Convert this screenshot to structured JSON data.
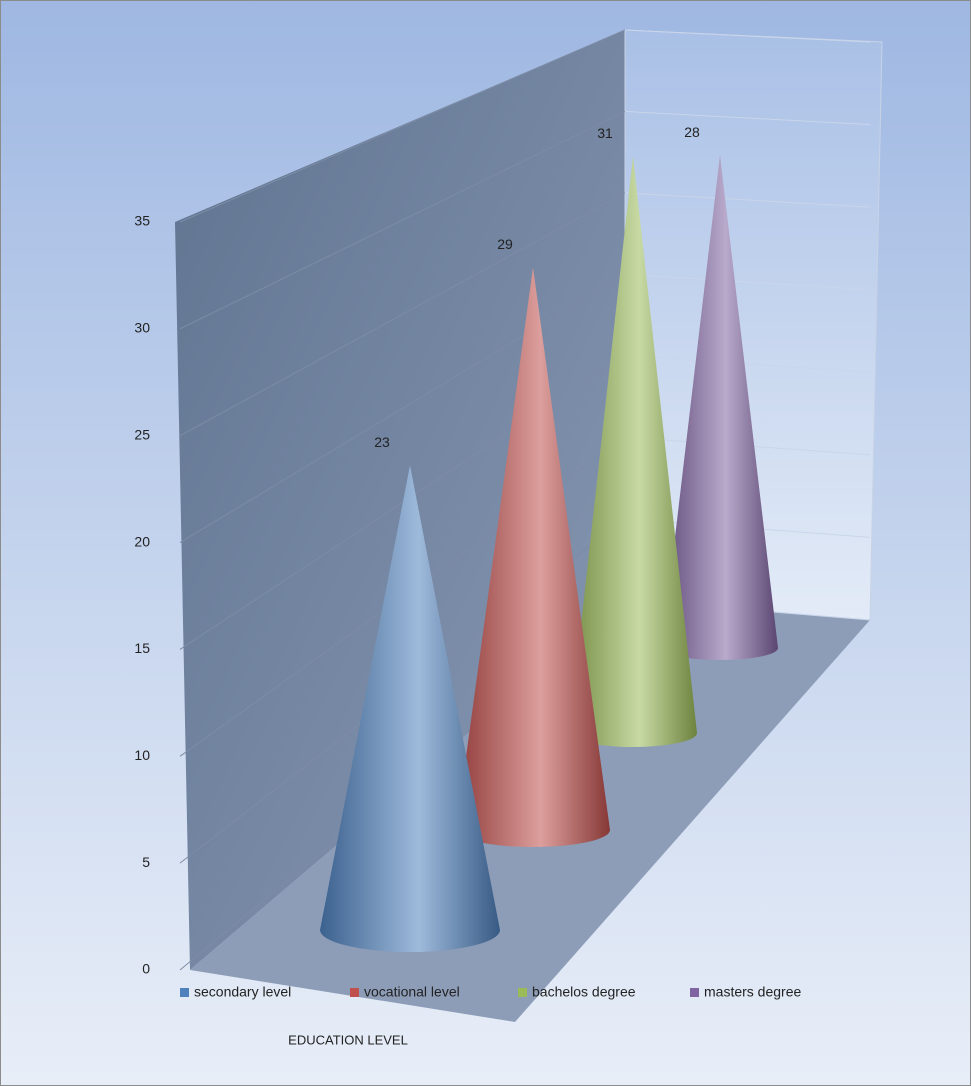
{
  "chart_data": {
    "type": "cone",
    "x_label": "EDUCATION LEVEL",
    "series": [
      {
        "name": "secondary level",
        "color": "#4f81bd",
        "values": [
          23
        ]
      },
      {
        "name": "vocational level",
        "color": "#c0504d",
        "values": [
          29
        ]
      },
      {
        "name": "bachelos degree",
        "color": "#9bbb59",
        "values": [
          31
        ]
      },
      {
        "name": "masters degree",
        "color": "#8064a2",
        "values": [
          28
        ]
      }
    ],
    "ylim": [
      0,
      35
    ],
    "yticks": [
      0,
      5,
      10,
      15,
      20,
      25,
      30,
      35
    ],
    "grid": true,
    "legend": "bottom"
  }
}
